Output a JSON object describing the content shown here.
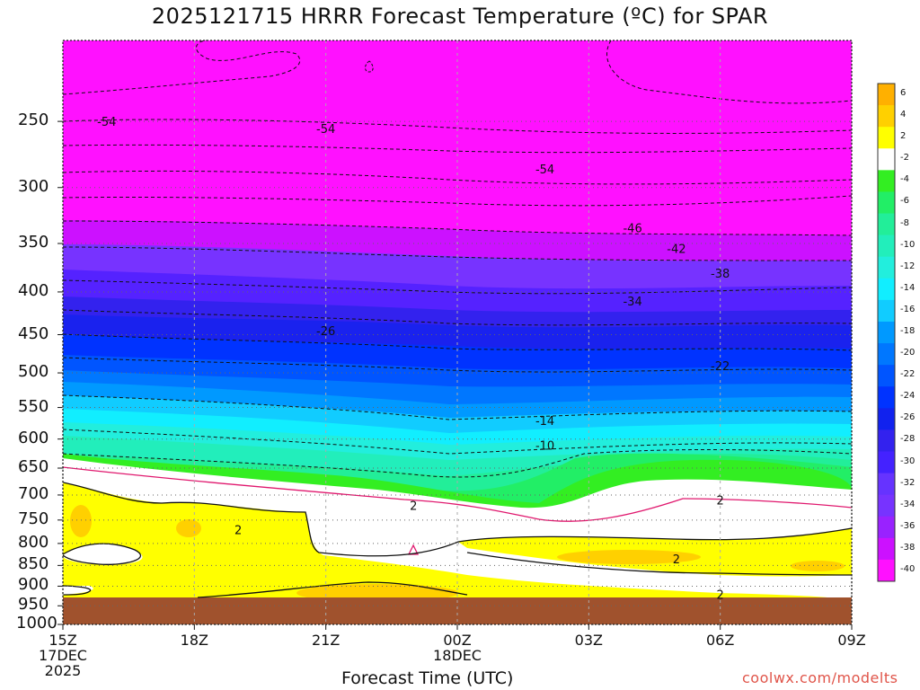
{
  "title": "2025121715 HRRR Forecast Temperature (ºC) for SPAR",
  "xlabel": "Forecast Time (UTC)",
  "credit": "coolwx.com/modelts",
  "chart_data": {
    "type": "contour",
    "title": "2025121715 HRRR Forecast Temperature (ºC) for SPAR",
    "xlabel": "Forecast Time (UTC)",
    "ylabel": "",
    "y_axis_unit": "hPa",
    "y_scale": "log-pressure",
    "ylim": [
      1000,
      200
    ],
    "y_ticks": [
      250,
      300,
      350,
      400,
      450,
      500,
      550,
      600,
      650,
      700,
      750,
      800,
      850,
      900,
      950,
      1000
    ],
    "x_ticks": [
      {
        "time": "2025-12-17 15Z",
        "label": "15Z",
        "label2": "17DEC",
        "label3": "2025"
      },
      {
        "time": "2025-12-17 18Z",
        "label": "18Z"
      },
      {
        "time": "2025-12-17 21Z",
        "label": "21Z"
      },
      {
        "time": "2025-12-18 00Z",
        "label": "00Z",
        "label2": "18DEC"
      },
      {
        "time": "2025-12-18 03Z",
        "label": "03Z"
      },
      {
        "time": "2025-12-18 06Z",
        "label": "06Z"
      },
      {
        "time": "2025-12-18 09Z",
        "label": "09Z"
      }
    ],
    "colorbar_levels": [
      6,
      4,
      2,
      -2,
      -4,
      -6,
      -8,
      -10,
      -12,
      -14,
      -16,
      -18,
      -20,
      -22,
      -24,
      -26,
      -28,
      -30,
      -32,
      -34,
      -36,
      -38,
      -40
    ],
    "colorbar_colors": [
      "#ffb000",
      "#ffd000",
      "#ffff00",
      "#ffffff",
      "#33ee22",
      "#22ee66",
      "#22ee99",
      "#22eebb",
      "#22eedd",
      "#11eeff",
      "#11ccff",
      "#0099ff",
      "#0077ff",
      "#0055ff",
      "#0033ff",
      "#1122ee",
      "#3322ee",
      "#4422ff",
      "#6633ff",
      "#7733ff",
      "#9922ff",
      "#cc11ff",
      "#ff11ff"
    ],
    "contour_labels": [
      {
        "time": "2025-12-17 16Z",
        "p": 250,
        "value": "-54"
      },
      {
        "time": "2025-12-17 21Z",
        "p": 255,
        "value": "-54"
      },
      {
        "time": "2025-12-18 02Z",
        "p": 285,
        "value": "-54"
      },
      {
        "time": "2025-12-18 04Z",
        "p": 335,
        "value": "-46"
      },
      {
        "time": "2025-12-18 05Z",
        "p": 355,
        "value": "-42"
      },
      {
        "time": "2025-12-18 06Z",
        "p": 380,
        "value": "-38"
      },
      {
        "time": "2025-12-18 04Z",
        "p": 410,
        "value": "-34"
      },
      {
        "time": "2025-12-17 21Z",
        "p": 445,
        "value": "-26"
      },
      {
        "time": "2025-12-18 06Z",
        "p": 490,
        "value": "-22"
      },
      {
        "time": "2025-12-18 02Z",
        "p": 570,
        "value": "-14"
      },
      {
        "time": "2025-12-18 02Z",
        "p": 610,
        "value": "-10"
      },
      {
        "time": "2025-12-17 23Z",
        "p": 720,
        "value": "2"
      },
      {
        "time": "2025-12-18 06Z",
        "p": 710,
        "value": "2"
      },
      {
        "time": "2025-12-17 19Z",
        "p": 770,
        "value": "2"
      },
      {
        "time": "2025-12-18 05Z",
        "p": 835,
        "value": "2"
      },
      {
        "time": "2025-12-18 06Z",
        "p": 920,
        "value": "2"
      }
    ],
    "grid": true
  }
}
